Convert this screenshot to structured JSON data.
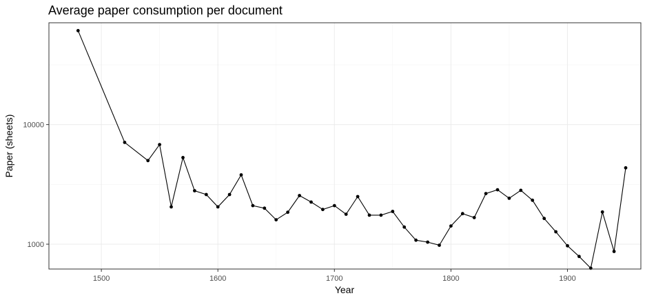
{
  "chart_data": {
    "type": "line",
    "title": "Average paper consumption per document",
    "xlabel": "Year",
    "ylabel": "Paper (sheets)",
    "y_scale": "log10",
    "xlim": [
      1455,
      1963
    ],
    "ylim": [
      620,
      71000
    ],
    "x_ticks": [
      1500,
      1600,
      1700,
      1800,
      1900
    ],
    "y_ticks": [
      1000,
      10000
    ],
    "x_tick_labels": [
      "1500",
      "1600",
      "1700",
      "1800",
      "1900"
    ],
    "y_tick_labels": [
      "1000",
      "10000"
    ],
    "grid": true,
    "legend": "none",
    "series": [
      {
        "color": "#000000",
        "x": [
          1480,
          1520,
          1540,
          1550,
          1560,
          1570,
          1580,
          1590,
          1600,
          1610,
          1620,
          1630,
          1640,
          1650,
          1660,
          1670,
          1680,
          1690,
          1700,
          1710,
          1720,
          1730,
          1740,
          1750,
          1760,
          1770,
          1780,
          1790,
          1800,
          1810,
          1820,
          1830,
          1840,
          1850,
          1860,
          1870,
          1880,
          1890,
          1900,
          1910,
          1920,
          1930,
          1940,
          1950
        ],
        "y": [
          61000,
          7100,
          5000,
          6800,
          2050,
          5300,
          2800,
          2600,
          2050,
          2600,
          3800,
          2100,
          2000,
          1600,
          1850,
          2550,
          2250,
          1950,
          2100,
          1780,
          2500,
          1750,
          1750,
          1880,
          1390,
          1080,
          1040,
          980,
          1420,
          1800,
          1670,
          2650,
          2850,
          2420,
          2820,
          2330,
          1640,
          1270,
          970,
          790,
          630,
          1860,
          870,
          4350
        ]
      }
    ]
  }
}
